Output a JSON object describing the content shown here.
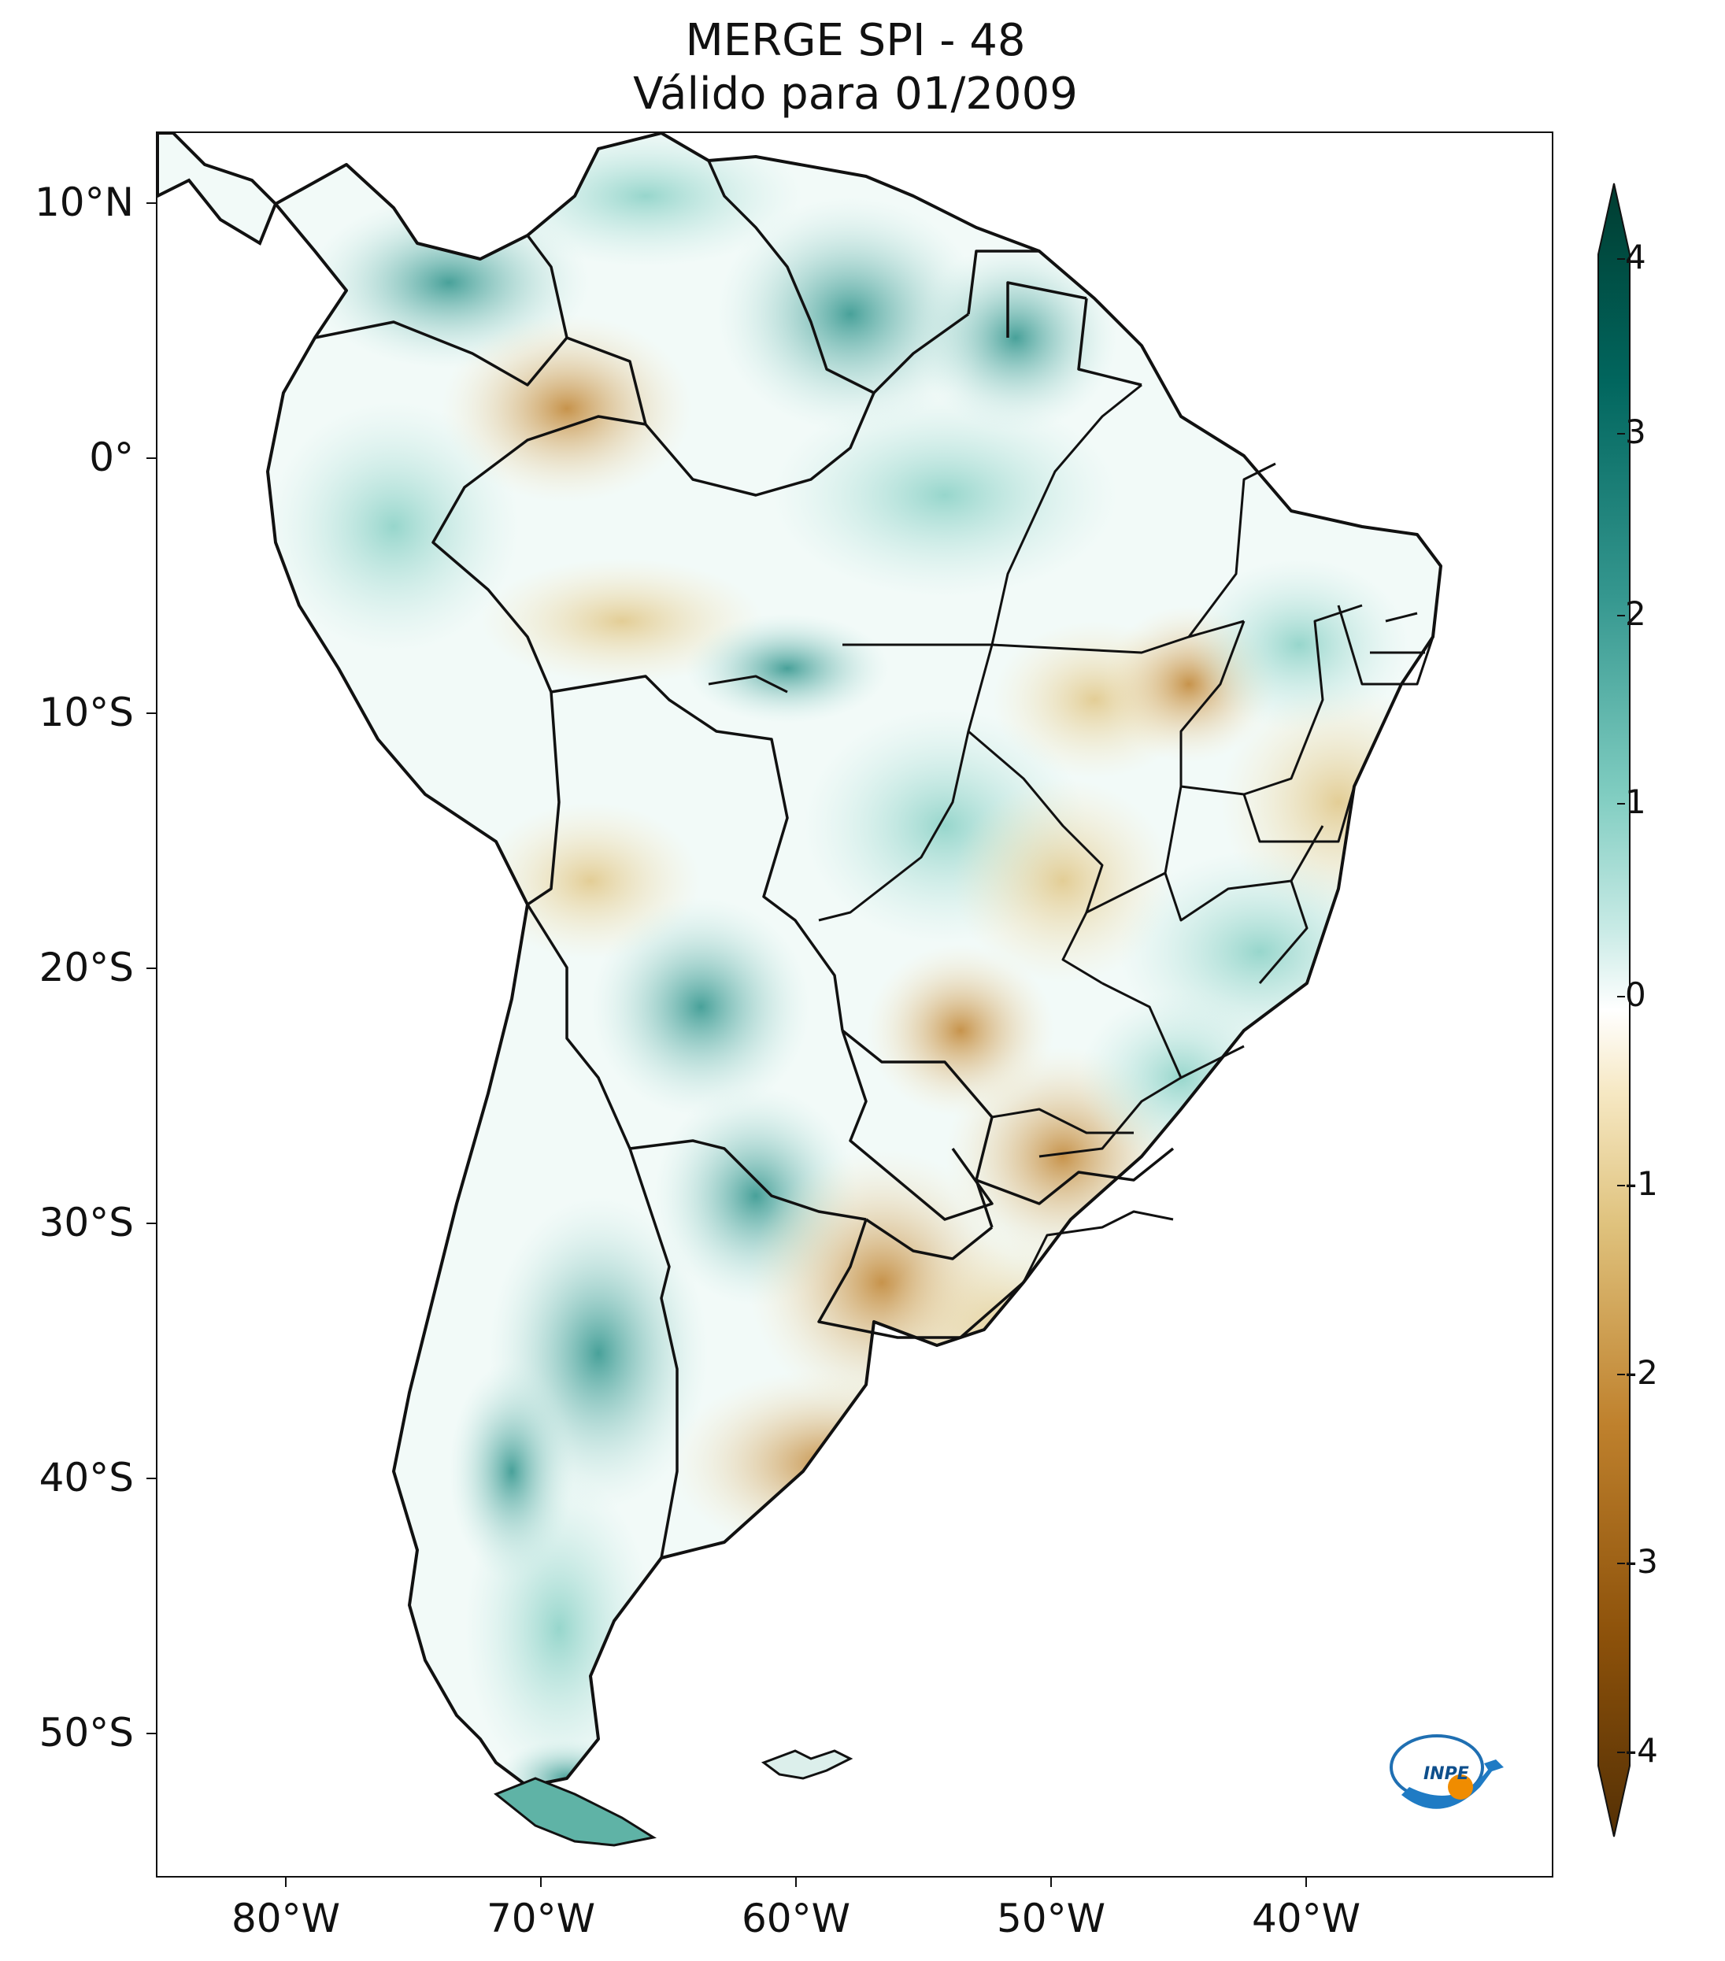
{
  "title": {
    "line1": "MERGE   SPI - 48",
    "line2": "Válido para 01/2009"
  },
  "axes": {
    "lat_ticks": [
      "10°N",
      "0°",
      "10°S",
      "20°S",
      "30°S",
      "40°S",
      "50°S"
    ],
    "lon_ticks": [
      "80°W",
      "70°W",
      "60°W",
      "50°W",
      "40°W"
    ]
  },
  "colorbar": {
    "ticks": [
      "4",
      "3",
      "2",
      "1",
      "0",
      "-1",
      "-2",
      "-3",
      "-4"
    ],
    "min": -4,
    "max": 4,
    "colors": {
      "dry_extreme": "#543005",
      "dry_strong": "#8c510a",
      "dry_moderate": "#bf812d",
      "dry_mild": "#dfc27d",
      "dry_light": "#f6e8c3",
      "neutral": "#ffffff",
      "wet_light": "#c7eae5",
      "wet_mild": "#80cdc1",
      "wet_moderate": "#35978f",
      "wet_strong": "#01665e",
      "wet_extreme": "#003c30"
    }
  },
  "logo": {
    "text": "INPE"
  }
}
